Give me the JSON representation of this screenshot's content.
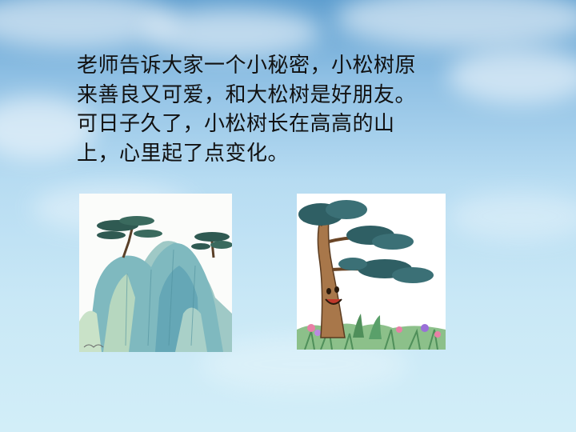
{
  "slide": {
    "text_lines": [
      "老师告诉大家一个小秘密，小松树原",
      "来善良又可爱，和大松树是好朋友。",
      "可日子久了，小松树长在高高的山",
      "上，心里起了点变化。"
    ]
  },
  "images": {
    "left": "mountain-with-pine-illustration",
    "right": "cartoon-pine-tree-with-face-illustration"
  },
  "colors": {
    "sky_top": "#5f9fd0",
    "sky_bottom": "#d2eef8",
    "text": "#111111"
  }
}
